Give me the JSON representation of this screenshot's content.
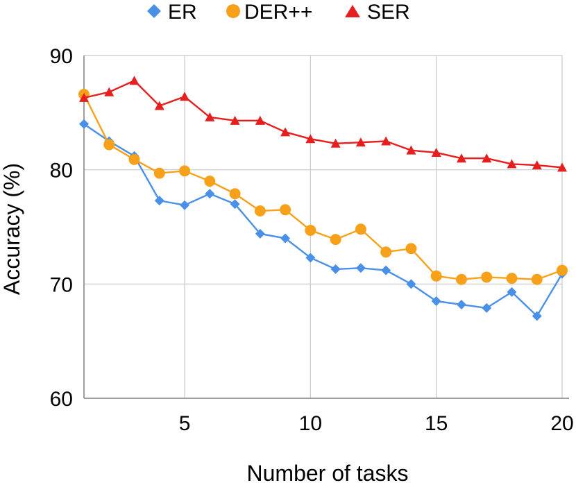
{
  "chart_data": {
    "type": "line",
    "title": "",
    "xlabel": "Number of tasks",
    "ylabel": "Accuracy (%)",
    "xlim": [
      1,
      20
    ],
    "ylim": [
      60,
      90
    ],
    "x_ticks": [
      5,
      10,
      15,
      20
    ],
    "y_ticks": [
      60,
      70,
      80,
      90
    ],
    "grid": true,
    "legend_position": "top",
    "x": [
      1,
      2,
      3,
      4,
      5,
      6,
      7,
      8,
      9,
      10,
      11,
      12,
      13,
      14,
      15,
      16,
      17,
      18,
      19,
      20
    ],
    "series": [
      {
        "name": "ER",
        "color": "#4a8fe8",
        "marker": "diamond",
        "values": [
          84.0,
          82.5,
          81.2,
          77.3,
          76.9,
          77.9,
          77.0,
          74.4,
          74.0,
          72.3,
          71.3,
          71.4,
          71.2,
          70.0,
          68.5,
          68.2,
          67.9,
          69.3,
          67.2,
          70.9
        ]
      },
      {
        "name": "DER++",
        "color": "#f7a11a",
        "marker": "circle",
        "values": [
          86.6,
          82.2,
          80.9,
          79.7,
          79.9,
          79.0,
          77.9,
          76.4,
          76.5,
          74.7,
          73.9,
          74.8,
          72.8,
          73.1,
          70.7,
          70.4,
          70.6,
          70.5,
          70.4,
          71.2
        ]
      },
      {
        "name": "SER",
        "color": "#e61e1e",
        "marker": "triangle",
        "values": [
          86.3,
          86.8,
          87.8,
          85.6,
          86.4,
          84.6,
          84.3,
          84.3,
          83.3,
          82.7,
          82.3,
          82.4,
          82.5,
          81.7,
          81.5,
          81.0,
          81.0,
          80.5,
          80.4,
          80.2
        ]
      }
    ]
  }
}
